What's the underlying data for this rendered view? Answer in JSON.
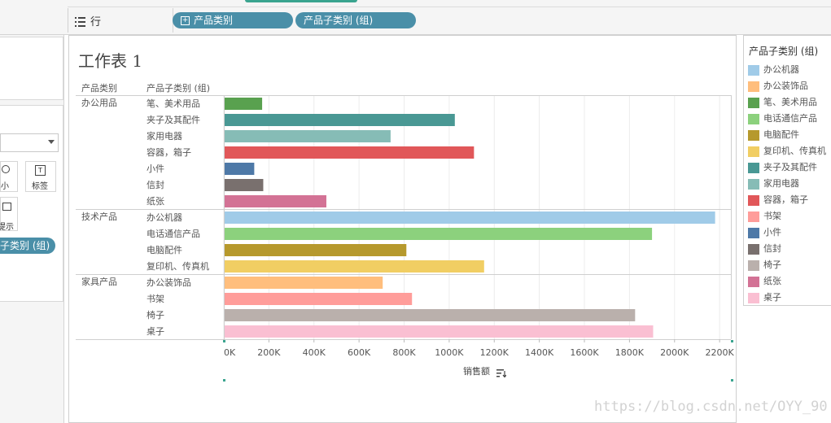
{
  "shelves": {
    "rows_label": "行",
    "rows_pills": [
      "产品类别",
      "产品子类别 (组)"
    ]
  },
  "left_panel": {
    "marks_buttons": [
      "小",
      "标签",
      "提示"
    ],
    "color_pill": "子类别 (组)"
  },
  "sheet": {
    "title": "工作表 1",
    "header_category": "产品类别",
    "header_subcategory": "产品子类别 (组)",
    "x_axis_title": "销售额"
  },
  "legend": {
    "title": "产品子类别 (组)",
    "items": [
      {
        "label": "办公机器",
        "color": "#a0cbe8"
      },
      {
        "label": "办公装饰品",
        "color": "#ffbe7d"
      },
      {
        "label": "笔、美术用品",
        "color": "#59a14f"
      },
      {
        "label": "电话通信产品",
        "color": "#8cd17d"
      },
      {
        "label": "电脑配件",
        "color": "#b6992d"
      },
      {
        "label": "复印机、传真机",
        "color": "#f1ce63"
      },
      {
        "label": "夹子及其配件",
        "color": "#499894"
      },
      {
        "label": "家用电器",
        "color": "#86bcb6"
      },
      {
        "label": "容器，箱子",
        "color": "#e15759"
      },
      {
        "label": "书架",
        "color": "#ff9d9a"
      },
      {
        "label": "小件",
        "color": "#4e79a7"
      },
      {
        "label": "信封",
        "color": "#79706e"
      },
      {
        "label": "椅子",
        "color": "#bab0ac"
      },
      {
        "label": "纸张",
        "color": "#d37295"
      },
      {
        "label": "桌子",
        "color": "#fabfd2"
      }
    ]
  },
  "watermark": "https://blog.csdn.net/OYY_90",
  "chart_data": {
    "type": "bar",
    "orientation": "horizontal",
    "title": "工作表 1",
    "xlabel": "销售额",
    "xlim": [
      0,
      2250000
    ],
    "x_ticks": [
      0,
      200000,
      400000,
      600000,
      800000,
      1000000,
      1200000,
      1400000,
      1600000,
      1800000,
      2000000,
      2200000
    ],
    "x_tick_labels": [
      "0K",
      "200K",
      "400K",
      "600K",
      "800K",
      "1000K",
      "1200K",
      "1400K",
      "1600K",
      "1800K",
      "2000K",
      "2200K"
    ],
    "groups": [
      {
        "name": "办公用品",
        "bars": [
          {
            "label": "笔、美术用品",
            "value": 170000,
            "color": "#59a14f"
          },
          {
            "label": "夹子及其配件",
            "value": 1025000,
            "color": "#499894"
          },
          {
            "label": "家用电器",
            "value": 740000,
            "color": "#86bcb6"
          },
          {
            "label": "容器，箱子",
            "value": 1110000,
            "color": "#e15759"
          },
          {
            "label": "小件",
            "value": 135000,
            "color": "#4e79a7"
          },
          {
            "label": "信封",
            "value": 175000,
            "color": "#79706e"
          },
          {
            "label": "纸张",
            "value": 455000,
            "color": "#d37295"
          }
        ]
      },
      {
        "name": "技术产品",
        "bars": [
          {
            "label": "办公机器",
            "value": 2180000,
            "color": "#a0cbe8"
          },
          {
            "label": "电话通信产品",
            "value": 1900000,
            "color": "#8cd17d"
          },
          {
            "label": "电脑配件",
            "value": 810000,
            "color": "#b6992d"
          },
          {
            "label": "复印机、传真机",
            "value": 1155000,
            "color": "#f1ce63"
          }
        ]
      },
      {
        "name": "家具产品",
        "bars": [
          {
            "label": "办公装饰品",
            "value": 705000,
            "color": "#ffbe7d"
          },
          {
            "label": "书架",
            "value": 835000,
            "color": "#ff9d9a"
          },
          {
            "label": "椅子",
            "value": 1825000,
            "color": "#bab0ac"
          },
          {
            "label": "桌子",
            "value": 1905000,
            "color": "#fabfd2"
          }
        ]
      }
    ]
  }
}
